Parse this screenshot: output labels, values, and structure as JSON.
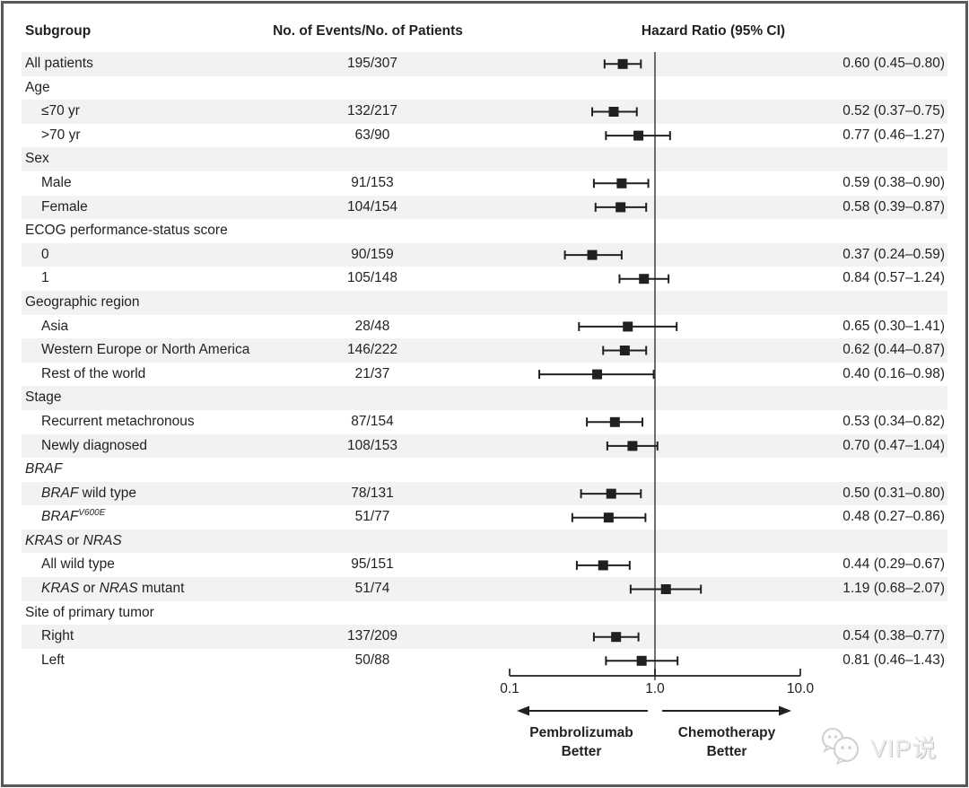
{
  "header": {
    "subgroup": "Subgroup",
    "events": "No. of Events/No. of Patients",
    "hazard": "Hazard Ratio (95% CI)"
  },
  "axis": {
    "ticks": [
      "0.1",
      "1.0",
      "10.0"
    ]
  },
  "better_left": {
    "line1": "Pembrolizumab",
    "line2": "Better"
  },
  "better_right": {
    "line1": "Chemotherapy",
    "line2": "Better"
  },
  "watermark": {
    "icon": "wechat-icon",
    "text": "VIP说"
  },
  "colors": {
    "stripe": "#f2f2f0",
    "ink": "#231f20",
    "ref_line": "#4c4c4c",
    "frame": "#59595c",
    "watermark": "#d4d4d2"
  },
  "chart_data": {
    "type": "forest",
    "x_axis": {
      "scale": "log",
      "min": 0.1,
      "max": 10.0,
      "ref_line": 1.0,
      "tick_values": [
        0.1,
        1.0,
        10.0
      ],
      "tick_labels": [
        "0.1",
        "1.0",
        "10.0"
      ]
    },
    "favors": {
      "left": "Pembrolizumab Better",
      "right": "Chemotherapy Better"
    },
    "columns": [
      "Subgroup",
      "No. of Events/No. of Patients",
      "Hazard Ratio (95% CI)"
    ],
    "rows": [
      {
        "label": [
          {
            "t": "All patients"
          }
        ],
        "indent": 0,
        "events": "195/307",
        "hr": 0.6,
        "lo": 0.45,
        "hi": 0.8,
        "hr_text": "0.60 (0.45–0.80)"
      },
      {
        "label": [
          {
            "t": "Age"
          }
        ],
        "indent": 0,
        "group": true
      },
      {
        "label": [
          {
            "t": "≤70 yr"
          }
        ],
        "indent": 1,
        "events": "132/217",
        "hr": 0.52,
        "lo": 0.37,
        "hi": 0.75,
        "hr_text": "0.52 (0.37–0.75)"
      },
      {
        "label": [
          {
            "t": ">70 yr"
          }
        ],
        "indent": 1,
        "events": "63/90",
        "hr": 0.77,
        "lo": 0.46,
        "hi": 1.27,
        "hr_text": "0.77 (0.46–1.27)"
      },
      {
        "label": [
          {
            "t": "Sex"
          }
        ],
        "indent": 0,
        "group": true
      },
      {
        "label": [
          {
            "t": "Male"
          }
        ],
        "indent": 1,
        "events": "91/153",
        "hr": 0.59,
        "lo": 0.38,
        "hi": 0.9,
        "hr_text": "0.59 (0.38–0.90)"
      },
      {
        "label": [
          {
            "t": "Female"
          }
        ],
        "indent": 1,
        "events": "104/154",
        "hr": 0.58,
        "lo": 0.39,
        "hi": 0.87,
        "hr_text": "0.58 (0.39–0.87)"
      },
      {
        "label": [
          {
            "t": "ECOG performance-status score"
          }
        ],
        "indent": 0,
        "group": true
      },
      {
        "label": [
          {
            "t": "0"
          }
        ],
        "indent": 1,
        "events": "90/159",
        "hr": 0.37,
        "lo": 0.24,
        "hi": 0.59,
        "hr_text": "0.37 (0.24–0.59)"
      },
      {
        "label": [
          {
            "t": "1"
          }
        ],
        "indent": 1,
        "events": "105/148",
        "hr": 0.84,
        "lo": 0.57,
        "hi": 1.24,
        "hr_text": "0.84 (0.57–1.24)"
      },
      {
        "label": [
          {
            "t": "Geographic region"
          }
        ],
        "indent": 0,
        "group": true
      },
      {
        "label": [
          {
            "t": "Asia"
          }
        ],
        "indent": 1,
        "events": "28/48",
        "hr": 0.65,
        "lo": 0.3,
        "hi": 1.41,
        "hr_text": "0.65 (0.30–1.41)"
      },
      {
        "label": [
          {
            "t": "Western Europe or North America"
          }
        ],
        "indent": 1,
        "events": "146/222",
        "hr": 0.62,
        "lo": 0.44,
        "hi": 0.87,
        "hr_text": "0.62 (0.44–0.87)"
      },
      {
        "label": [
          {
            "t": "Rest of the world"
          }
        ],
        "indent": 1,
        "events": "21/37",
        "hr": 0.4,
        "lo": 0.16,
        "hi": 0.98,
        "hr_text": "0.40 (0.16–0.98)"
      },
      {
        "label": [
          {
            "t": "Stage"
          }
        ],
        "indent": 0,
        "group": true
      },
      {
        "label": [
          {
            "t": "Recurrent metachronous"
          }
        ],
        "indent": 1,
        "events": "87/154",
        "hr": 0.53,
        "lo": 0.34,
        "hi": 0.82,
        "hr_text": "0.53 (0.34–0.82)"
      },
      {
        "label": [
          {
            "t": "Newly diagnosed"
          }
        ],
        "indent": 1,
        "events": "108/153",
        "hr": 0.7,
        "lo": 0.47,
        "hi": 1.04,
        "hr_text": "0.70 (0.47–1.04)"
      },
      {
        "label": [
          {
            "t": "BRAF",
            "i": true
          }
        ],
        "indent": 0,
        "group": true
      },
      {
        "label": [
          {
            "t": "BRAF",
            "i": true
          },
          {
            "t": " wild type"
          }
        ],
        "indent": 1,
        "events": "78/131",
        "hr": 0.5,
        "lo": 0.31,
        "hi": 0.8,
        "hr_text": "0.50 (0.31–0.80)"
      },
      {
        "label": [
          {
            "t": "BRAF",
            "i": true
          },
          {
            "t": "V600E",
            "i": true,
            "sup": true
          }
        ],
        "indent": 1,
        "events": "51/77",
        "hr": 0.48,
        "lo": 0.27,
        "hi": 0.86,
        "hr_text": "0.48 (0.27–0.86)"
      },
      {
        "label": [
          {
            "t": "KRAS",
            "i": true
          },
          {
            "t": " or "
          },
          {
            "t": "NRAS",
            "i": true
          }
        ],
        "indent": 0,
        "group": true
      },
      {
        "label": [
          {
            "t": "All wild type"
          }
        ],
        "indent": 1,
        "events": "95/151",
        "hr": 0.44,
        "lo": 0.29,
        "hi": 0.67,
        "hr_text": "0.44 (0.29–0.67)"
      },
      {
        "label": [
          {
            "t": "KRAS",
            "i": true
          },
          {
            "t": " or "
          },
          {
            "t": "NRAS",
            "i": true
          },
          {
            "t": " mutant"
          }
        ],
        "indent": 1,
        "events": "51/74",
        "hr": 1.19,
        "lo": 0.68,
        "hi": 2.07,
        "hr_text": "1.19 (0.68–2.07)"
      },
      {
        "label": [
          {
            "t": "Site of primary tumor"
          }
        ],
        "indent": 0,
        "group": true
      },
      {
        "label": [
          {
            "t": "Right"
          }
        ],
        "indent": 1,
        "events": "137/209",
        "hr": 0.54,
        "lo": 0.38,
        "hi": 0.77,
        "hr_text": "0.54 (0.38–0.77)"
      },
      {
        "label": [
          {
            "t": "Left"
          }
        ],
        "indent": 1,
        "events": "50/88",
        "hr": 0.81,
        "lo": 0.46,
        "hi": 1.43,
        "hr_text": "0.81 (0.46–1.43)"
      }
    ]
  }
}
